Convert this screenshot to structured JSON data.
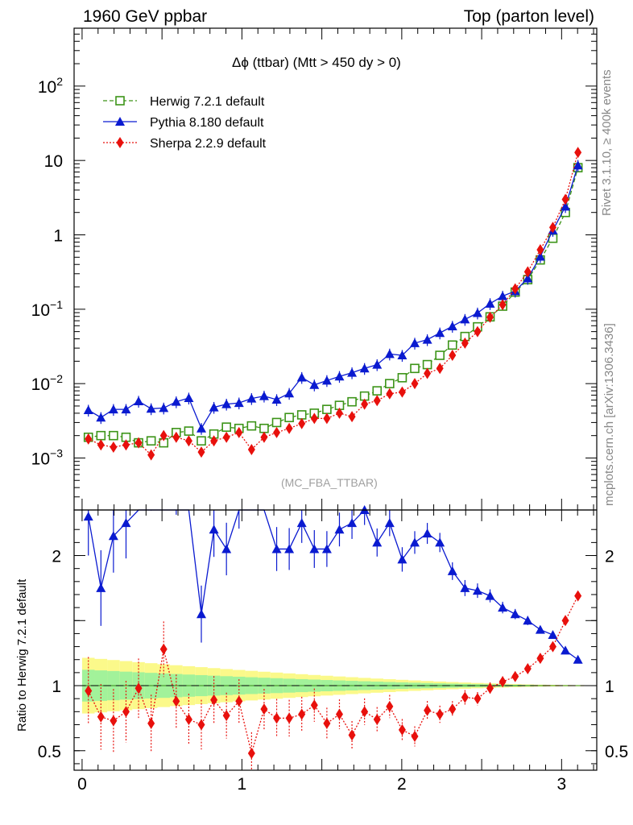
{
  "header": {
    "left": "1960 GeV ppbar",
    "right": "Top (parton level)"
  },
  "side_labels": {
    "rivet": "Rivet 3.1.10, ≥ 400k events",
    "mcplots": "mcplots.cern.ch [arXiv:1306.3436]"
  },
  "chart_data": {
    "type": "line",
    "title": "Δϕ (ttbar) (Mtt > 450 dy > 0)",
    "watermark": "(MC_FBA_TTBAR)",
    "ylabel_ratio": "Ratio to Herwig 7.2.1 default",
    "main_axis": {
      "y_scale": "log",
      "ylim": [
        0.0002,
        600
      ],
      "y_tick_labels": [
        "10^-3",
        "10^-2",
        "10^-1",
        "1",
        "10",
        "10^2"
      ]
    },
    "ratio_axis": {
      "ylim": [
        0.35,
        2.35
      ],
      "y_tick_labels": [
        "0.5",
        "1",
        "2"
      ]
    },
    "x_axis": {
      "xlim": [
        -0.05,
        3.22
      ],
      "tick_labels": [
        "0",
        "1",
        "2",
        "3"
      ]
    },
    "x": [
      0.0393,
      0.1178,
      0.1963,
      0.2749,
      0.3534,
      0.432,
      0.5105,
      0.589,
      0.6676,
      0.7461,
      0.8247,
      0.9032,
      0.9817,
      1.0603,
      1.1388,
      1.2174,
      1.2959,
      1.3744,
      1.453,
      1.5315,
      1.6101,
      1.6886,
      1.7671,
      1.8457,
      1.9242,
      2.0028,
      2.0813,
      2.1598,
      2.2384,
      2.3169,
      2.3955,
      2.474,
      2.5525,
      2.6311,
      2.7096,
      2.7882,
      2.8667,
      2.9452,
      3.0238,
      3.1023
    ],
    "series": [
      {
        "name": "Herwig 7.2.1 default",
        "color": "#3c9418",
        "marker": "open-square",
        "line": "dashed",
        "values": [
          0.0019,
          0.002,
          0.002,
          0.0019,
          0.0016,
          0.0017,
          0.0016,
          0.0022,
          0.0023,
          0.0017,
          0.0021,
          0.0026,
          0.0025,
          0.0027,
          0.0025,
          0.003,
          0.0035,
          0.0038,
          0.004,
          0.0045,
          0.0051,
          0.0057,
          0.0068,
          0.008,
          0.01,
          0.012,
          0.016,
          0.018,
          0.024,
          0.033,
          0.043,
          0.058,
          0.079,
          0.11,
          0.17,
          0.25,
          0.46,
          0.9,
          2.0,
          8.0
        ],
        "ratio": [
          1.0,
          1.0,
          1.0,
          1.0,
          1.0,
          1.0,
          1.0,
          1.0,
          1.0,
          1.0,
          1.0,
          1.0,
          1.0,
          1.0,
          1.0,
          1.0,
          1.0,
          1.0,
          1.0,
          1.0,
          1.0,
          1.0,
          1.0,
          1.0,
          1.0,
          1.0,
          1.0,
          1.0,
          1.0,
          1.0,
          1.0,
          1.0,
          1.0,
          1.0,
          1.0,
          1.0,
          1.0,
          1.0,
          1.0,
          1.0
        ]
      },
      {
        "name": "Pythia 8.180 default",
        "color": "#0a1ad0",
        "marker": "filled-triangle",
        "line": "solid",
        "values": [
          0.0044,
          0.0035,
          0.0045,
          0.0045,
          0.0058,
          0.0046,
          0.0047,
          0.0057,
          0.0064,
          0.0025,
          0.0048,
          0.0053,
          0.0055,
          0.0063,
          0.0068,
          0.0061,
          0.0074,
          0.0121,
          0.0096,
          0.011,
          0.0125,
          0.014,
          0.016,
          0.018,
          0.025,
          0.024,
          0.035,
          0.039,
          0.048,
          0.059,
          0.073,
          0.089,
          0.119,
          0.15,
          0.175,
          0.26,
          0.51,
          1.15,
          2.4,
          8.6
        ],
        "ratio": [
          2.3,
          1.75,
          2.15,
          2.25,
          2.7,
          2.6,
          2.6,
          2.55,
          2.65,
          1.55,
          2.2,
          2.05,
          2.4,
          2.55,
          2.65,
          2.05,
          2.05,
          2.25,
          2.05,
          2.05,
          2.2,
          2.25,
          2.35,
          2.1,
          2.25,
          1.97,
          2.1,
          2.17,
          2.1,
          1.88,
          1.75,
          1.73,
          1.69,
          1.6,
          1.55,
          1.5,
          1.43,
          1.39,
          1.27,
          1.2
        ]
      },
      {
        "name": "Sherpa 2.2.9 default",
        "color": "#e8100c",
        "marker": "filled-diamond",
        "line": "dotted",
        "values": [
          0.0018,
          0.0015,
          0.0014,
          0.0015,
          0.0016,
          0.0011,
          0.002,
          0.0019,
          0.0017,
          0.0012,
          0.0017,
          0.0019,
          0.0022,
          0.0013,
          0.0019,
          0.0022,
          0.0025,
          0.0029,
          0.0034,
          0.0034,
          0.004,
          0.0036,
          0.0053,
          0.0059,
          0.0073,
          0.0077,
          0.01,
          0.0137,
          0.016,
          0.024,
          0.035,
          0.05,
          0.078,
          0.115,
          0.188,
          0.318,
          0.63,
          1.26,
          3.0,
          12.8
        ],
        "ratio": [
          0.96,
          0.76,
          0.73,
          0.8,
          0.98,
          0.71,
          1.28,
          0.88,
          0.74,
          0.7,
          0.89,
          0.77,
          0.88,
          0.48,
          0.82,
          0.75,
          0.75,
          0.78,
          0.85,
          0.71,
          0.78,
          0.62,
          0.8,
          0.74,
          0.84,
          0.66,
          0.61,
          0.81,
          0.78,
          0.82,
          0.91,
          0.9,
          0.98,
          1.03,
          1.07,
          1.13,
          1.21,
          1.3,
          1.5,
          1.69
        ]
      }
    ],
    "legend_position": "top-left",
    "grid": false
  }
}
